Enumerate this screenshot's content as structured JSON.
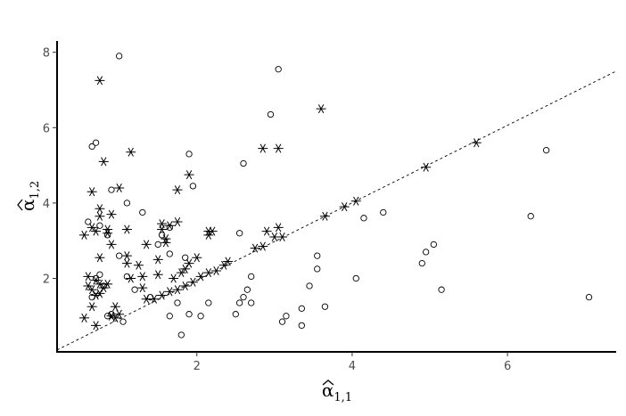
{
  "chart_data": {
    "type": "scatter",
    "title": "",
    "xlabel": "α̂1,1",
    "ylabel": "α̂1,2",
    "xlabel_parts": {
      "symbol": "α",
      "sub": "1,1"
    },
    "ylabel_parts": {
      "symbol": "α",
      "sub": "1,2"
    },
    "xlim": [
      0.2,
      7.4
    ],
    "ylim": [
      0.05,
      8.3
    ],
    "xticks": [
      2,
      4,
      6
    ],
    "yticks": [
      2,
      4,
      6,
      8
    ],
    "grid": false,
    "reference_line": {
      "style": "dashed",
      "x": [
        0.2,
        7.4
      ],
      "y": [
        0.1,
        7.5
      ]
    },
    "series": [
      {
        "marker": "circle",
        "points": [
          [
            1.0,
            7.9
          ],
          [
            3.05,
            7.55
          ],
          [
            2.95,
            6.35
          ],
          [
            6.5,
            5.4
          ],
          [
            0.65,
            5.5
          ],
          [
            0.7,
            5.6
          ],
          [
            1.9,
            5.3
          ],
          [
            2.6,
            5.05
          ],
          [
            1.95,
            4.45
          ],
          [
            0.9,
            4.35
          ],
          [
            1.3,
            3.75
          ],
          [
            1.1,
            4.0
          ],
          [
            0.6,
            3.5
          ],
          [
            0.75,
            3.4
          ],
          [
            1.65,
            3.35
          ],
          [
            2.55,
            3.2
          ],
          [
            4.4,
            3.75
          ],
          [
            4.15,
            3.6
          ],
          [
            6.3,
            3.65
          ],
          [
            5.05,
            2.9
          ],
          [
            4.95,
            2.7
          ],
          [
            4.9,
            2.4
          ],
          [
            5.15,
            1.7
          ],
          [
            7.05,
            1.5
          ],
          [
            3.55,
            2.6
          ],
          [
            3.55,
            2.25
          ],
          [
            4.05,
            2.0
          ],
          [
            3.45,
            1.8
          ],
          [
            3.65,
            1.25
          ],
          [
            3.1,
            0.85
          ],
          [
            3.15,
            1.0
          ],
          [
            3.35,
            0.75
          ],
          [
            3.35,
            1.2
          ],
          [
            2.7,
            2.05
          ],
          [
            2.65,
            1.7
          ],
          [
            2.6,
            1.5
          ],
          [
            2.55,
            1.35
          ],
          [
            2.7,
            1.35
          ],
          [
            2.5,
            1.05
          ],
          [
            2.15,
            1.35
          ],
          [
            2.05,
            1.0
          ],
          [
            1.9,
            1.05
          ],
          [
            1.75,
            1.35
          ],
          [
            1.65,
            1.0
          ],
          [
            1.8,
            0.5
          ],
          [
            1.4,
            1.5
          ],
          [
            1.2,
            1.7
          ],
          [
            1.05,
            0.85
          ],
          [
            0.85,
            1.0
          ],
          [
            0.9,
            1.05
          ],
          [
            0.8,
            1.8
          ],
          [
            0.7,
            2.0
          ],
          [
            0.75,
            2.1
          ],
          [
            1.85,
            2.55
          ],
          [
            1.65,
            2.65
          ],
          [
            1.0,
            2.6
          ],
          [
            1.1,
            2.05
          ],
          [
            1.5,
            2.9
          ],
          [
            0.85,
            3.15
          ],
          [
            1.55,
            3.15
          ],
          [
            0.65,
            1.5
          ]
        ]
      },
      {
        "marker": "asterisk",
        "points": [
          [
            0.75,
            7.25
          ],
          [
            3.6,
            6.5
          ],
          [
            5.6,
            5.6
          ],
          [
            2.85,
            5.45
          ],
          [
            3.05,
            5.45
          ],
          [
            1.15,
            5.35
          ],
          [
            0.8,
            5.1
          ],
          [
            4.95,
            4.95
          ],
          [
            1.9,
            4.75
          ],
          [
            1.0,
            4.4
          ],
          [
            0.65,
            4.3
          ],
          [
            1.75,
            4.35
          ],
          [
            0.75,
            3.85
          ],
          [
            0.9,
            3.7
          ],
          [
            0.75,
            3.65
          ],
          [
            1.1,
            3.3
          ],
          [
            0.65,
            3.35
          ],
          [
            1.55,
            3.45
          ],
          [
            1.55,
            3.3
          ],
          [
            1.65,
            3.4
          ],
          [
            1.75,
            3.5
          ],
          [
            0.55,
            3.15
          ],
          [
            0.7,
            3.25
          ],
          [
            0.85,
            3.2
          ],
          [
            0.85,
            3.3
          ],
          [
            1.6,
            3.05
          ],
          [
            2.15,
            3.15
          ],
          [
            2.15,
            3.25
          ],
          [
            2.2,
            3.25
          ],
          [
            2.9,
            3.25
          ],
          [
            3.05,
            3.35
          ],
          [
            3.0,
            3.1
          ],
          [
            3.1,
            3.1
          ],
          [
            3.65,
            3.65
          ],
          [
            3.9,
            3.9
          ],
          [
            4.05,
            4.05
          ],
          [
            1.35,
            2.9
          ],
          [
            0.9,
            2.9
          ],
          [
            1.6,
            2.95
          ],
          [
            2.75,
            2.8
          ],
          [
            2.85,
            2.85
          ],
          [
            2.4,
            2.45
          ],
          [
            2.0,
            2.55
          ],
          [
            1.1,
            2.6
          ],
          [
            1.1,
            2.4
          ],
          [
            0.75,
            2.55
          ],
          [
            1.25,
            2.35
          ],
          [
            1.5,
            2.5
          ],
          [
            1.9,
            2.4
          ],
          [
            1.85,
            2.25
          ],
          [
            1.8,
            2.15
          ],
          [
            1.7,
            2.0
          ],
          [
            2.25,
            2.2
          ],
          [
            2.35,
            2.35
          ],
          [
            1.15,
            2.0
          ],
          [
            1.3,
            2.05
          ],
          [
            1.5,
            2.1
          ],
          [
            0.6,
            2.05
          ],
          [
            0.7,
            1.95
          ],
          [
            0.6,
            1.8
          ],
          [
            0.75,
            1.85
          ],
          [
            0.85,
            1.85
          ],
          [
            0.65,
            1.7
          ],
          [
            0.8,
            1.75
          ],
          [
            0.75,
            1.6
          ],
          [
            0.7,
            1.55
          ],
          [
            1.3,
            1.75
          ],
          [
            1.35,
            1.45
          ],
          [
            1.45,
            1.45
          ],
          [
            1.55,
            1.55
          ],
          [
            1.65,
            1.65
          ],
          [
            1.75,
            1.7
          ],
          [
            1.85,
            1.8
          ],
          [
            1.95,
            1.9
          ],
          [
            2.05,
            2.05
          ],
          [
            2.15,
            2.15
          ],
          [
            0.95,
            1.25
          ],
          [
            0.65,
            1.25
          ],
          [
            0.9,
            1.0
          ],
          [
            0.95,
            0.95
          ],
          [
            1.0,
            1.05
          ],
          [
            0.55,
            0.95
          ],
          [
            0.7,
            0.75
          ]
        ]
      }
    ]
  }
}
